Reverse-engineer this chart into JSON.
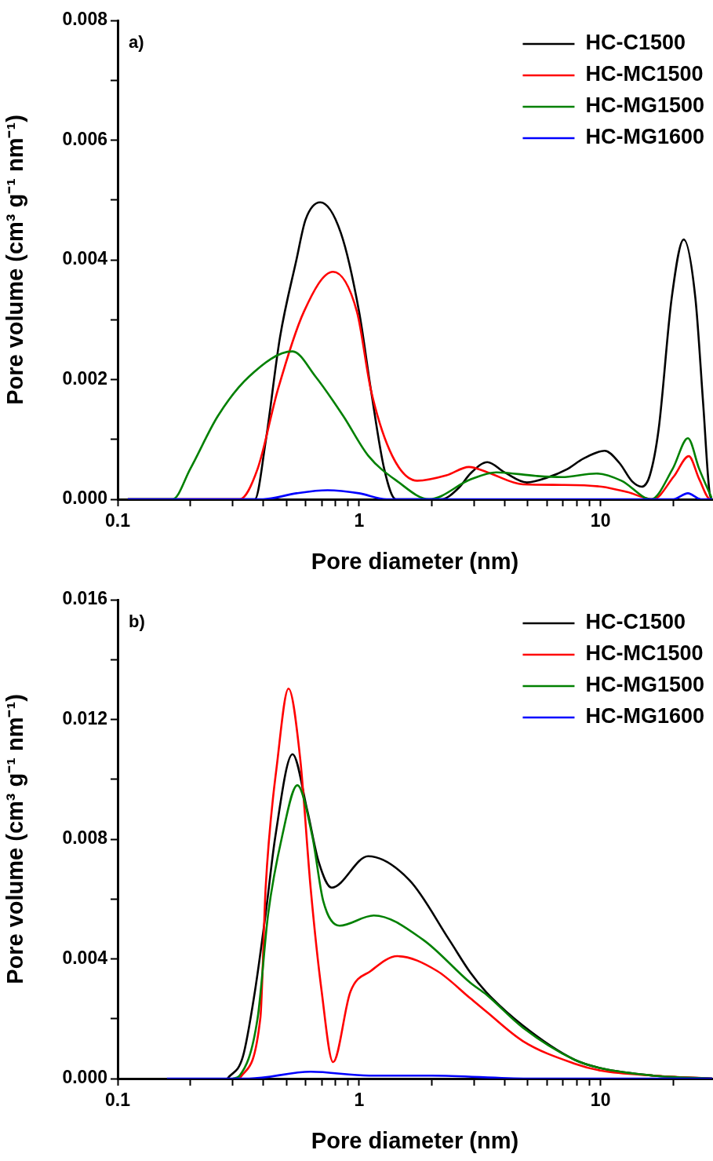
{
  "chart_data": [
    {
      "type": "line",
      "title": "a)",
      "xlabel": "Pore diameter (nm)",
      "ylabel": "Pore volume (cm³ g⁻¹ nm⁻¹)",
      "log": "x",
      "legend": "top right",
      "xlim": [
        0.1,
        29
      ],
      "xticks": [
        0.1,
        {
          "value": 0.2,
          "label": null
        },
        {
          "value": 0.3,
          "label": null
        },
        {
          "value": 0.4,
          "label": null
        },
        {
          "value": 0.5,
          "label": null
        },
        {
          "value": 0.6,
          "label": null
        },
        {
          "value": 0.7,
          "label": null
        },
        {
          "value": 0.8,
          "label": null
        },
        {
          "value": 0.9,
          "label": null
        },
        1,
        {
          "value": 2,
          "label": null
        },
        {
          "value": 3,
          "label": null
        },
        {
          "value": 4,
          "label": null
        },
        {
          "value": 5,
          "label": null
        },
        {
          "value": 6,
          "label": null
        },
        {
          "value": 7,
          "label": null
        },
        {
          "value": 8,
          "label": null
        },
        {
          "value": 9,
          "label": null
        },
        10,
        {
          "value": 20,
          "label": null
        }
      ],
      "ylim": [
        0,
        0.008
      ],
      "yticks": [
        {
          "value": 0,
          "label": "0.000"
        },
        {
          "value": 0.001,
          "label": null
        },
        0.002,
        {
          "value": 0.003,
          "label": null
        },
        0.004,
        {
          "value": 0.005,
          "label": null
        },
        0.006,
        {
          "value": 0.007,
          "label": null
        },
        0.008
      ],
      "series": [
        {
          "name": "HC-C1500",
          "color": "#000000",
          "x": [
            0.11,
            0.3,
            0.37,
            0.41,
            0.47,
            0.55,
            0.6,
            0.69,
            0.84,
            1.0,
            1.12,
            1.27,
            1.42,
            2.19,
            2.6,
            2.89,
            3.4,
            4.0,
            4.95,
            6.0,
            7.25,
            8.5,
            10.4,
            12.0,
            13.5,
            14.8,
            16.0,
            17.4,
            19.7,
            22.1,
            24.7,
            26.6,
            28.3,
            29
          ],
          "values": [
            0,
            0,
            0,
            0.00096,
            0.0027,
            0.004,
            0.00467,
            0.00496,
            0.00445,
            0.00313,
            0.00182,
            0.00051,
            0,
            0,
            0.0002,
            0.00043,
            0.00062,
            0.00045,
            0.00028,
            0.00036,
            0.0005,
            0.00068,
            0.00081,
            0.0006,
            0.0003,
            0.00021,
            0.0004,
            0.00117,
            0.00336,
            0.00434,
            0.00336,
            0.0016,
            0.0001,
            0
          ]
        },
        {
          "name": "HC-MC1500",
          "color": "#ff0000",
          "x": [
            0.11,
            0.32,
            0.38,
            0.46,
            0.59,
            0.78,
            0.98,
            1.12,
            1.37,
            1.74,
            2.3,
            2.85,
            3.4,
            4.77,
            6.9,
            10.1,
            12.9,
            16.5,
            20.1,
            23.2,
            25.6,
            28.5,
            29
          ],
          "values": [
            0,
            0,
            0.00051,
            0.00182,
            0.00313,
            0.0038,
            0.00313,
            0.00182,
            0.00073,
            0.00031,
            0.0004,
            0.00054,
            0.00045,
            0.00025,
            0.00024,
            0.00021,
            0.00012,
            0,
            0.00038,
            0.00072,
            0.00034,
            0,
            0
          ]
        },
        {
          "name": "HC-MG1500",
          "color": "#008000",
          "x": [
            0.11,
            0.169,
            0.2,
            0.26,
            0.35,
            0.53,
            0.66,
            0.86,
            1.09,
            1.44,
            1.95,
            2.89,
            3.7,
            5.4,
            6.9,
            9.6,
            12.2,
            16.2,
            19.9,
            23.0,
            25.6,
            29
          ],
          "values": [
            0,
            0,
            0.00051,
            0.00139,
            0.00205,
            0.00247,
            0.00205,
            0.00139,
            0.00073,
            0.0003,
            0,
            0.00033,
            0.00045,
            0.00039,
            0.00037,
            0.00043,
            0.00031,
            0,
            0.00051,
            0.00102,
            0.00051,
            0
          ]
        },
        {
          "name": "HC-MG1600",
          "color": "#0000ff",
          "x": [
            0.11,
            0.4,
            0.55,
            0.74,
            1.0,
            1.3,
            20.0,
            23.0,
            26.0,
            29
          ],
          "values": [
            0,
            0,
            0.0001,
            0.00015,
            0.0001,
            0,
            0,
            0.0001,
            0,
            0
          ]
        }
      ]
    },
    {
      "type": "line",
      "title": "b)",
      "xlabel": "Pore diameter (nm)",
      "ylabel": "Pore volume (cm³ g⁻¹ nm⁻¹)",
      "log": "x",
      "legend": "top right",
      "xlim": [
        0.1,
        29
      ],
      "xticks": [
        0.1,
        {
          "value": 0.2,
          "label": null
        },
        {
          "value": 0.3,
          "label": null
        },
        {
          "value": 0.4,
          "label": null
        },
        {
          "value": 0.5,
          "label": null
        },
        {
          "value": 0.6,
          "label": null
        },
        {
          "value": 0.7,
          "label": null
        },
        {
          "value": 0.8,
          "label": null
        },
        {
          "value": 0.9,
          "label": null
        },
        1,
        {
          "value": 2,
          "label": null
        },
        {
          "value": 3,
          "label": null
        },
        {
          "value": 4,
          "label": null
        },
        {
          "value": 5,
          "label": null
        },
        {
          "value": 6,
          "label": null
        },
        {
          "value": 7,
          "label": null
        },
        {
          "value": 8,
          "label": null
        },
        {
          "value": 9,
          "label": null
        },
        10,
        {
          "value": 20,
          "label": null
        }
      ],
      "ylim": [
        0,
        0.016
      ],
      "yticks": [
        {
          "value": 0,
          "label": "0.000"
        },
        {
          "value": 0.002,
          "label": null
        },
        0.004,
        {
          "value": 0.006,
          "label": null
        },
        0.008,
        {
          "value": 0.01,
          "label": null
        },
        0.012,
        {
          "value": 0.014,
          "label": null
        },
        0.016
      ],
      "series": [
        {
          "name": "HC-C1500",
          "color": "#000000",
          "x": [
            0.285,
            0.33,
            0.37,
            0.41,
            0.45,
            0.53,
            0.61,
            0.68,
            0.77,
            1.09,
            1.62,
            2.36,
            2.89,
            3.36,
            4.77,
            7.8,
            10.1,
            16.5,
            29
          ],
          "values": [
            0,
            0.00073,
            0.0029,
            0.0055,
            0.0081,
            0.01084,
            0.00896,
            0.00724,
            0.00638,
            0.00743,
            0.00662,
            0.00464,
            0.00354,
            0.00289,
            0.00177,
            0.00063,
            0.00034,
            0.0001,
            0
          ]
        },
        {
          "name": "HC-MC1500",
          "color": "#ff0000",
          "x": [
            0.32,
            0.39,
            0.41,
            0.46,
            0.51,
            0.57,
            0.63,
            0.7,
            0.78,
            0.92,
            1.12,
            1.44,
            2.1,
            2.89,
            3.36,
            4.77,
            7.8,
            10.1,
            16.5,
            29
          ],
          "values": [
            0,
            0.00203,
            0.00636,
            0.0107,
            0.01303,
            0.0107,
            0.00636,
            0.0029,
            0.00055,
            0.0029,
            0.0036,
            0.00409,
            0.0036,
            0.00268,
            0.00224,
            0.00125,
            0.0005,
            0.00026,
            0.0001,
            0
          ]
        },
        {
          "name": "HC-MG1500",
          "color": "#008000",
          "x": [
            0.3,
            0.32,
            0.38,
            0.42,
            0.48,
            0.555,
            0.64,
            0.71,
            0.83,
            1.15,
            1.84,
            2.89,
            3.36,
            4.77,
            7.8,
            10.1,
            16.5,
            29
          ],
          "values": [
            0,
            0.0001,
            0.00203,
            0.0055,
            0.0081,
            0.0098,
            0.0081,
            0.00594,
            0.00511,
            0.00545,
            0.00464,
            0.0032,
            0.00281,
            0.0017,
            0.00063,
            0.00034,
            0.0001,
            0
          ]
        },
        {
          "name": "HC-MG1600",
          "color": "#0000ff",
          "x": [
            0.16,
            0.35,
            0.63,
            1.1,
            2.0,
            5.0,
            29
          ],
          "values": [
            0,
            0,
            0.00023,
            0.0001,
            0.0001,
            0,
            0
          ]
        }
      ]
    }
  ]
}
